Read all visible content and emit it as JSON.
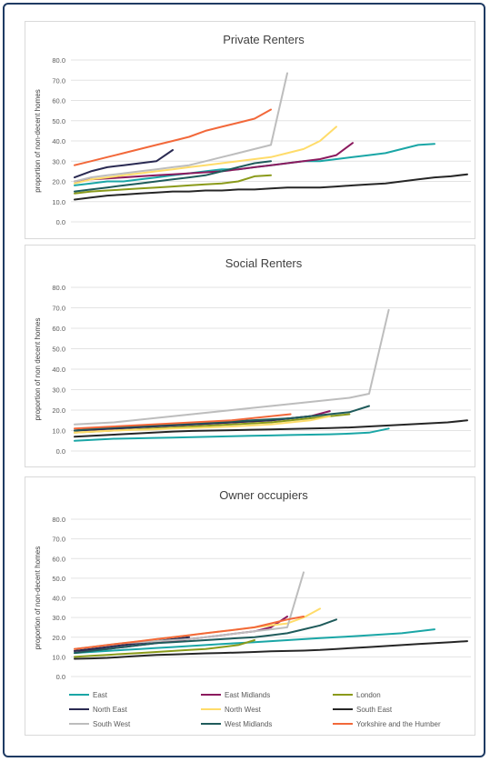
{
  "colors": {
    "East": "#1aa6a6",
    "East Midlands": "#8b1a5e",
    "London": "#8a9a1a",
    "North East": "#2a2a52",
    "North West": "#ffdc6a",
    "South East": "#262626",
    "South West": "#bdbdbd",
    "West Midlands": "#1f5b5b",
    "Yorkshire and the Humber": "#f2683a"
  },
  "legend": [
    "East",
    "East Midlands",
    "London",
    "North East",
    "North West",
    "South East",
    "South West",
    "West Midlands",
    "Yorkshire and the Humber"
  ],
  "chart_data": [
    {
      "type": "line",
      "title": "Private Renters",
      "ylabel": "proportion of non-decent homes",
      "xlabel": "",
      "ylim": [
        0,
        80
      ],
      "yticks": [
        "0.0",
        "10.0",
        "20.0",
        "30.0",
        "40.0",
        "50.0",
        "60.0",
        "70.0",
        "80.0"
      ],
      "grid": true,
      "series": [
        {
          "name": "East",
          "values": [
            18,
            19,
            20,
            20,
            21,
            22,
            23,
            24,
            25,
            26,
            26,
            27,
            28,
            29,
            30,
            30,
            31,
            32,
            33,
            34,
            36,
            38,
            38.5
          ]
        },
        {
          "name": "East Midlands",
          "values": [
            20,
            21,
            21.5,
            22,
            22.5,
            23,
            23.5,
            24,
            24.5,
            25,
            26,
            27,
            28,
            29,
            30,
            31,
            33,
            39
          ]
        },
        {
          "name": "London",
          "values": [
            14,
            15,
            15.5,
            16,
            16.5,
            17,
            17.5,
            18,
            18.5,
            19,
            20,
            22.5,
            23
          ]
        },
        {
          "name": "North East",
          "values": [
            22,
            25,
            27,
            28,
            29,
            30,
            35.5
          ]
        },
        {
          "name": "North West",
          "values": [
            19,
            21,
            22,
            23,
            24,
            25,
            26,
            27,
            28,
            29,
            30,
            31,
            32,
            34,
            36,
            40,
            47
          ]
        },
        {
          "name": "South East",
          "values": [
            11,
            12,
            13,
            13.5,
            14,
            14.5,
            15,
            15,
            15.5,
            15.5,
            16,
            16,
            16.5,
            17,
            17,
            17,
            17.5,
            18,
            18.5,
            19,
            20,
            21,
            22,
            22.5,
            23.5
          ]
        },
        {
          "name": "South West",
          "values": [
            20,
            22,
            23,
            24,
            25,
            26,
            27,
            28,
            30,
            32,
            34,
            36,
            38,
            73.5
          ]
        },
        {
          "name": "West Midlands",
          "values": [
            15,
            16,
            17,
            18,
            19,
            20,
            21,
            22,
            23,
            25,
            27,
            29,
            30
          ]
        },
        {
          "name": "Yorkshire and the Humber",
          "values": [
            28,
            30,
            32,
            34,
            36,
            38,
            40,
            42,
            45,
            47,
            49,
            51,
            55.5
          ]
        }
      ]
    },
    {
      "type": "line",
      "title": "Social Renters",
      "ylabel": "proportion of non decent homes",
      "xlabel": "",
      "ylim": [
        0,
        80
      ],
      "yticks": [
        "0.0",
        "10.0",
        "20.0",
        "30.0",
        "40.0",
        "50.0",
        "60.0",
        "70.0",
        "80.0"
      ],
      "grid": true,
      "series": [
        {
          "name": "East",
          "values": [
            5,
            5.5,
            6,
            6.2,
            6.4,
            6.6,
            6.8,
            7,
            7.2,
            7.4,
            7.6,
            7.8,
            8,
            8.2,
            8.5,
            9,
            11
          ]
        },
        {
          "name": "East Midlands",
          "values": [
            10,
            10.5,
            11,
            11.5,
            12,
            12.5,
            13,
            13.5,
            14,
            14.5,
            15,
            16,
            17,
            19.5
          ]
        },
        {
          "name": "London",
          "values": [
            9,
            9.5,
            10,
            10.5,
            11,
            11.5,
            12,
            12.5,
            13,
            13.5,
            14,
            15,
            16,
            17,
            18
          ]
        },
        {
          "name": "North East",
          "values": [
            10,
            10.5,
            11,
            11.5,
            12,
            12.5,
            13,
            13.5,
            14,
            14.5,
            15,
            16,
            17
          ]
        },
        {
          "name": "North West",
          "values": [
            9,
            9.5,
            10,
            10.3,
            10.6,
            11,
            11.3,
            11.6,
            12,
            12.5,
            13,
            14,
            15,
            17
          ]
        },
        {
          "name": "South East",
          "values": [
            7,
            7.5,
            8,
            8.5,
            9,
            9.5,
            9.8,
            10,
            10.2,
            10.4,
            10.6,
            10.8,
            11,
            11.2,
            11.5,
            12,
            12.5,
            13,
            13.5,
            14,
            15
          ]
        },
        {
          "name": "South West",
          "values": [
            13,
            13.5,
            14,
            15,
            16,
            17,
            18,
            19,
            20,
            21,
            22,
            23,
            24,
            25,
            26,
            28,
            69
          ]
        },
        {
          "name": "West Midlands",
          "values": [
            10,
            11,
            11.5,
            12,
            12.5,
            13,
            13.5,
            14,
            14.5,
            15,
            15.5,
            16,
            17,
            18,
            19,
            22
          ]
        },
        {
          "name": "Yorkshire and the Humber",
          "values": [
            11,
            11.5,
            12,
            12.5,
            13,
            13.5,
            14,
            14.5,
            15,
            16,
            17,
            18
          ]
        }
      ]
    },
    {
      "type": "line",
      "title": "Owner occupiers",
      "ylabel": "proportion of non-decent homes",
      "xlabel": "",
      "ylim": [
        0,
        80
      ],
      "yticks": [
        "0.0",
        "10.0",
        "20.0",
        "30.0",
        "40.0",
        "50.0",
        "60.0",
        "70.0",
        "80.0"
      ],
      "grid": true,
      "series": [
        {
          "name": "East",
          "values": [
            12,
            12.5,
            13,
            13.5,
            14,
            14.5,
            15,
            15.5,
            16,
            16.5,
            17,
            17.5,
            18,
            18.5,
            19,
            19.5,
            20,
            20.5,
            21,
            21.5,
            22,
            23,
            24
          ]
        },
        {
          "name": "East Midlands",
          "values": [
            13,
            13.5,
            14,
            15,
            16,
            17,
            18,
            19,
            20,
            21,
            22,
            23,
            25,
            30.5
          ]
        },
        {
          "name": "London",
          "values": [
            10,
            10.5,
            11,
            11.5,
            12,
            12.5,
            13,
            13.5,
            14,
            15,
            16,
            18.5
          ]
        },
        {
          "name": "North East",
          "values": [
            13,
            14,
            15,
            16,
            17,
            18,
            19,
            20
          ]
        },
        {
          "name": "North West",
          "values": [
            14,
            15,
            16,
            17,
            18,
            19,
            20,
            21,
            22,
            23,
            24,
            25,
            26,
            27,
            30,
            34.5
          ]
        },
        {
          "name": "South East",
          "values": [
            9,
            9.2,
            9.5,
            10,
            10.5,
            11,
            11.2,
            11.5,
            11.8,
            12,
            12.2,
            12.5,
            12.8,
            13,
            13.2,
            13.5,
            14,
            14.5,
            15,
            15.5,
            16,
            16.5,
            17,
            17.5,
            18
          ]
        },
        {
          "name": "South West",
          "values": [
            14,
            15,
            16,
            17,
            17.5,
            18,
            18.5,
            19,
            20,
            21,
            22,
            23,
            24,
            25,
            53
          ]
        },
        {
          "name": "West Midlands",
          "values": [
            12,
            13,
            14,
            15,
            16,
            17,
            17.5,
            18,
            18.5,
            19,
            19.5,
            20,
            21,
            22,
            24,
            26,
            29
          ]
        },
        {
          "name": "Yorkshire and the Humber",
          "values": [
            14,
            15,
            16,
            17,
            18,
            19,
            20,
            21,
            22,
            23,
            24,
            25,
            27,
            29,
            30.5
          ]
        }
      ]
    }
  ]
}
